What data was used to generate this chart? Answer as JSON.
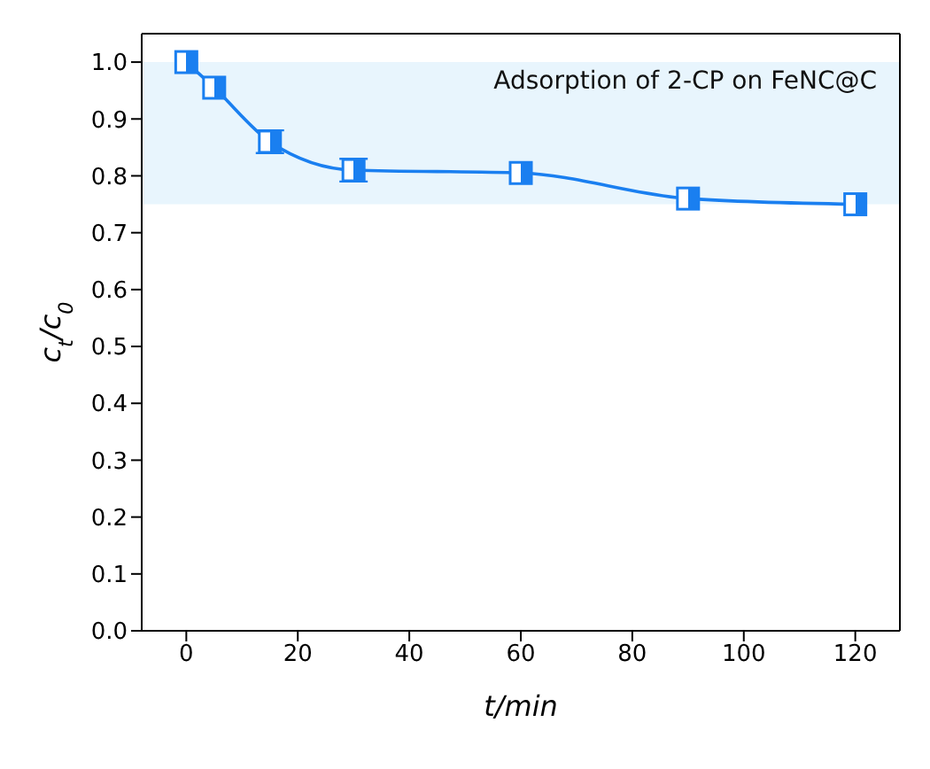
{
  "chart_data": {
    "type": "line",
    "xlabel": "t/min",
    "ylabel": "c$_{t}$/c$_{0}$",
    "annotations": [
      "Adsorption of 2-CP on FeNC@C"
    ],
    "x": [
      0,
      5,
      15,
      30,
      60,
      90,
      120
    ],
    "series": [
      {
        "color": "#1a7ff0",
        "values": [
          1.0,
          0.955,
          0.86,
          0.81,
          0.805,
          0.76,
          0.75
        ],
        "errors": [
          null,
          null,
          0.02,
          0.02,
          null,
          null,
          null
        ]
      }
    ],
    "marker": "square",
    "line_style": "solid",
    "xlim": [
      -8,
      128
    ],
    "xticks": [
      0,
      20,
      40,
      60,
      80,
      100,
      120
    ],
    "ylim": [
      0,
      1.05
    ],
    "yticks": [
      {
        "value": 0,
        "label": "0.0"
      },
      0.1,
      0.2,
      0.3,
      0.4,
      0.5,
      0.6,
      0.7,
      0.8,
      0.9,
      {
        "value": 1,
        "label": "1.0"
      }
    ],
    "bands": [
      {
        "axis": "y",
        "from": 0.75,
        "to": 1.0,
        "color": "#e8f5fd"
      }
    ],
    "grid": false,
    "legend": false
  }
}
